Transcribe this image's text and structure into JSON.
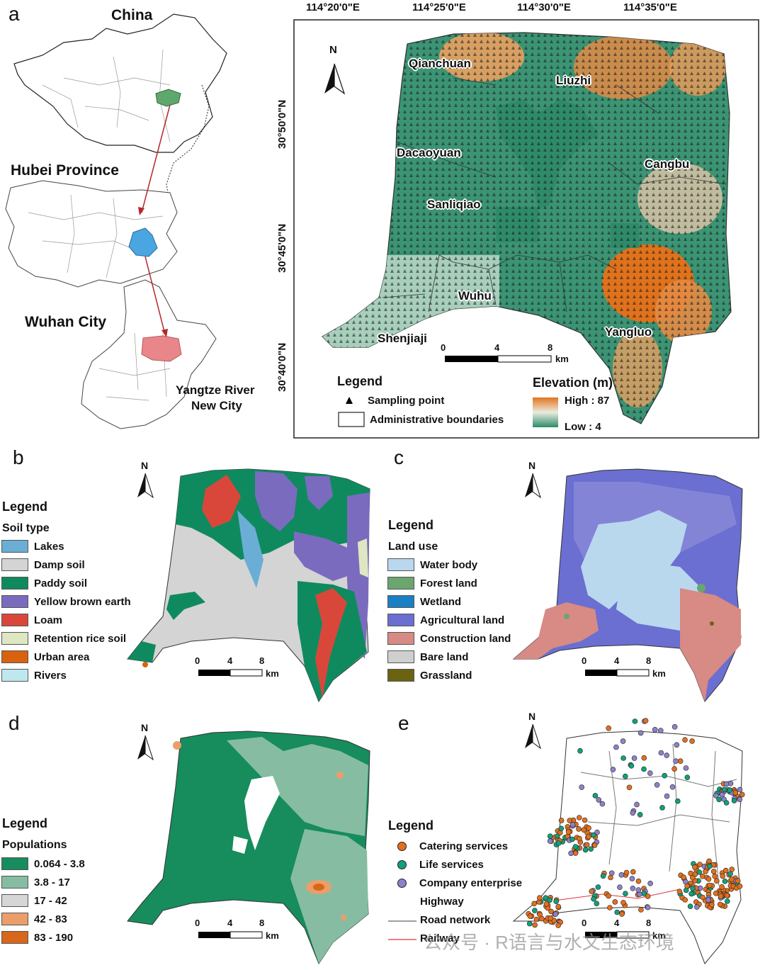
{
  "panels": {
    "a": {
      "letter": "a",
      "labels": {
        "china": "China",
        "hubei": "Hubei Province",
        "wuhan": "Wuhan City",
        "ycity_line1": "Yangtze River",
        "ycity_line2": "New City"
      },
      "coords": {
        "lon": [
          "114°20'0\"E",
          "114°25'0\"E",
          "114°30'0\"E",
          "114°35'0\"E"
        ],
        "lat": [
          "30°50'0\"N",
          "30°45'0\"N",
          "30°40'0\"N"
        ]
      },
      "places": [
        "Qianchuan",
        "Liuzhi",
        "Dacaoyuan",
        "Cangbu",
        "Sanliqiao",
        "Wuhu",
        "Shenjiaji",
        "Yangluo"
      ],
      "north": "N",
      "scale": {
        "ticks": [
          "0",
          "4",
          "8"
        ],
        "unit": "km"
      },
      "legend": {
        "title": "Legend",
        "sampling": "Sampling point",
        "admin": "Administrative boundaries",
        "elev_title": "Elevation (m)",
        "elev_high": "High : 87",
        "elev_low": "Low : 4"
      },
      "colors": {
        "high": "#e3731e",
        "low": "#2e8b6a",
        "mid": "#9cc6b3"
      }
    },
    "b": {
      "letter": "b",
      "north": "N",
      "legend_title": "Legend",
      "legend_sub": "Soil type",
      "items": [
        {
          "label": "Lakes",
          "color": "#6aaed6"
        },
        {
          "label": "Damp soil",
          "color": "#d4d4d4"
        },
        {
          "label": "Paddy soil",
          "color": "#0f8a5f"
        },
        {
          "label": "Yellow brown earth",
          "color": "#7b6bbf"
        },
        {
          "label": "Loam",
          "color": "#d9473b"
        },
        {
          "label": "Retention rice soil",
          "color": "#dfe6c2"
        },
        {
          "label": "Urban area",
          "color": "#d9620f"
        },
        {
          "label": "Rivers",
          "color": "#bfe8ee"
        }
      ],
      "scale": {
        "ticks": [
          "0",
          "4",
          "8"
        ],
        "unit": "km"
      }
    },
    "c": {
      "letter": "c",
      "north": "N",
      "legend_title": "Legend",
      "legend_sub": "Land use",
      "items": [
        {
          "label": "Water body",
          "color": "#b9d8ee"
        },
        {
          "label": "Forest land",
          "color": "#6aa66e"
        },
        {
          "label": "Wetland",
          "color": "#1b7fc4"
        },
        {
          "label": "Agricultural land",
          "color": "#6a6fd1"
        },
        {
          "label": "Construction land",
          "color": "#d88a84"
        },
        {
          "label": "Bare land",
          "color": "#cfcfcf"
        },
        {
          "label": "Grassland",
          "color": "#6b6312"
        }
      ],
      "scale": {
        "ticks": [
          "0",
          "4",
          "8"
        ],
        "unit": "km"
      }
    },
    "d": {
      "letter": "d",
      "north": "N",
      "legend_title": "Legend",
      "legend_sub": "Populations",
      "items": [
        {
          "label": "0.064 - 3.8",
          "color": "#178c5d"
        },
        {
          "label": "3.8 - 17",
          "color": "#86bda2"
        },
        {
          "label": "17 - 42",
          "color": "#d6d6d6"
        },
        {
          "label": "42 - 83",
          "color": "#eb9e6a"
        },
        {
          "label": "83 - 190",
          "color": "#d8661b"
        }
      ],
      "scale": {
        "ticks": [
          "0",
          "4",
          "8"
        ],
        "unit": "km"
      }
    },
    "e": {
      "letter": "e",
      "north": "N",
      "legend_title": "Legend",
      "items": [
        {
          "label": "Catering services",
          "kind": "dot",
          "color": "#e2701f"
        },
        {
          "label": "Life services",
          "kind": "dot",
          "color": "#12a07a"
        },
        {
          "label": "Company enterprise",
          "kind": "dot",
          "color": "#8d82c9"
        },
        {
          "label": "Highway",
          "kind": "none",
          "color": "#ffffff"
        },
        {
          "label": "Road network",
          "kind": "line",
          "color": "#666666"
        },
        {
          "label": "Railway",
          "kind": "line",
          "color": "#e0353a"
        }
      ],
      "scale": {
        "ticks": [
          "0",
          "4",
          "8"
        ],
        "unit": "km"
      }
    }
  },
  "watermark": "公众号 · R语言与水文生态环境"
}
